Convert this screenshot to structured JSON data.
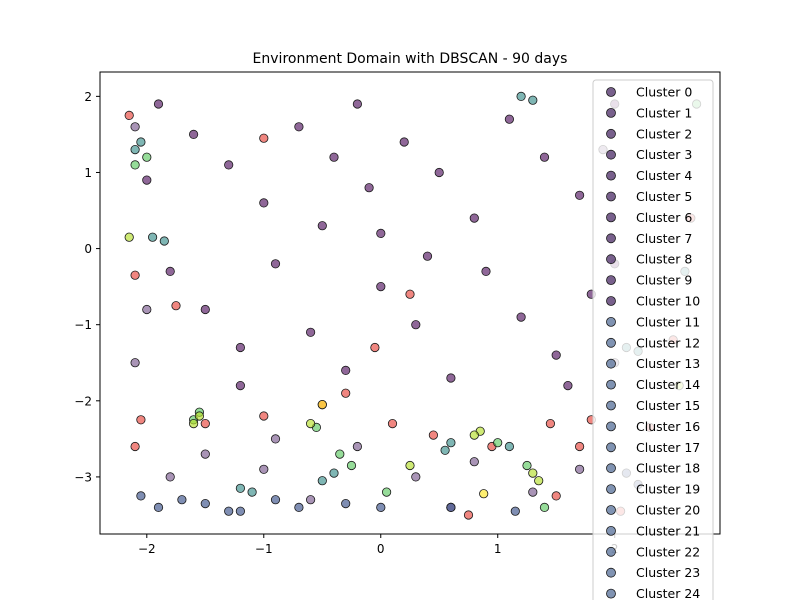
{
  "chart_data": {
    "type": "scatter",
    "title": "Environment Domain with DBSCAN - 90 days",
    "xlabel": "",
    "ylabel": "",
    "xlim": [
      -2.4,
      2.9
    ],
    "ylim": [
      -3.75,
      2.32
    ],
    "xticks": [
      -2,
      -1,
      0,
      1,
      2
    ],
    "yticks": [
      -3,
      -2,
      -1,
      0,
      1,
      2
    ],
    "grid": false,
    "legend_position": "top-right",
    "colors": {
      "dense": "#440154",
      "dense_light": "#7b5a8f",
      "noise": "#e8453c",
      "teal": "#3b8f8c",
      "green": "#5ec962",
      "lime": "#b5de2b",
      "navy": "#3b528b",
      "yellow": "#fde725",
      "legend_marker": "#4b2b66",
      "legend_marker_late": "#556f98"
    },
    "series": [
      {
        "name": "Cluster 0",
        "color_key": "dense",
        "points": [
          [
            -1.9,
            1.9
          ],
          [
            -1.6,
            1.5
          ],
          [
            -1.3,
            1.1
          ],
          [
            -1.0,
            0.6
          ],
          [
            -0.7,
            1.6
          ],
          [
            -0.4,
            1.2
          ],
          [
            -0.1,
            0.8
          ],
          [
            0.2,
            1.4
          ],
          [
            0.5,
            1.0
          ],
          [
            0.8,
            0.4
          ],
          [
            1.1,
            1.7
          ],
          [
            1.4,
            1.2
          ],
          [
            1.7,
            0.7
          ],
          [
            2.0,
            1.9
          ],
          [
            -1.8,
            -0.3
          ],
          [
            -1.5,
            -0.8
          ],
          [
            -1.2,
            -1.3
          ],
          [
            -0.9,
            -0.2
          ],
          [
            -0.6,
            -1.1
          ],
          [
            -0.3,
            -1.6
          ],
          [
            0.0,
            -0.5
          ],
          [
            0.3,
            -1.0
          ],
          [
            0.6,
            -1.7
          ],
          [
            0.9,
            -0.3
          ],
          [
            1.2,
            -0.9
          ],
          [
            1.5,
            -1.4
          ],
          [
            1.8,
            -0.6
          ],
          [
            -2.0,
            0.9
          ],
          [
            2.0,
            -0.2
          ],
          [
            0.0,
            0.2
          ],
          [
            0.4,
            -0.1
          ],
          [
            -0.5,
            0.3
          ],
          [
            -1.2,
            -1.8
          ],
          [
            1.6,
            -1.8
          ],
          [
            -0.2,
            1.9
          ]
        ]
      },
      {
        "name": "Cluster 1",
        "color_key": "dense_light",
        "points": [
          [
            -2.1,
            1.6
          ],
          [
            -2.0,
            -0.8
          ],
          [
            -2.1,
            -1.5
          ],
          [
            2.0,
            -1.5
          ],
          [
            1.9,
            1.3
          ],
          [
            -1.5,
            -2.7
          ],
          [
            -1.0,
            -2.9
          ],
          [
            -0.6,
            -3.3
          ],
          [
            -0.2,
            -2.6
          ],
          [
            0.3,
            -3.0
          ],
          [
            0.8,
            -2.8
          ],
          [
            1.3,
            -3.2
          ],
          [
            1.7,
            -2.9
          ],
          [
            -1.8,
            -3.0
          ],
          [
            0.6,
            -3.4
          ],
          [
            -0.9,
            -2.5
          ]
        ]
      },
      {
        "name": "Cluster 2",
        "color_key": "noise",
        "points": [
          [
            -2.15,
            1.75
          ],
          [
            -2.1,
            -0.35
          ],
          [
            -2.05,
            -2.25
          ],
          [
            -2.1,
            -2.6
          ],
          [
            -1.75,
            -0.75
          ],
          [
            -1.5,
            -2.3
          ],
          [
            -1.0,
            -2.2
          ],
          [
            -0.3,
            -1.9
          ],
          [
            -0.05,
            -1.3
          ],
          [
            0.45,
            -2.45
          ],
          [
            0.95,
            -2.6
          ],
          [
            1.5,
            -3.25
          ],
          [
            2.05,
            -3.45
          ],
          [
            1.7,
            -2.6
          ],
          [
            2.3,
            -2.35
          ],
          [
            1.45,
            -2.3
          ],
          [
            0.75,
            -3.5
          ],
          [
            0.1,
            -2.3
          ],
          [
            -0.5,
            -2.05
          ],
          [
            2.5,
            -1.2
          ],
          [
            2.65,
            0.4
          ],
          [
            1.8,
            -2.25
          ],
          [
            0.25,
            -0.6
          ],
          [
            -1.0,
            1.45
          ]
        ]
      },
      {
        "name": "Cluster 3",
        "color_key": "teal",
        "points": [
          [
            -2.05,
            1.4
          ],
          [
            -2.1,
            1.3
          ],
          [
            -1.95,
            0.15
          ],
          [
            -1.85,
            0.1
          ],
          [
            -1.2,
            -3.15
          ],
          [
            -1.1,
            -3.2
          ],
          [
            0.55,
            -2.65
          ],
          [
            0.6,
            -2.55
          ],
          [
            1.2,
            2.0
          ],
          [
            1.3,
            1.95
          ],
          [
            1.1,
            -2.6
          ],
          [
            2.1,
            -1.3
          ],
          [
            2.2,
            -1.35
          ],
          [
            2.6,
            -0.3
          ],
          [
            -0.5,
            -3.05
          ],
          [
            -0.4,
            -2.95
          ]
        ]
      },
      {
        "name": "Cluster 4",
        "color_key": "green",
        "points": [
          [
            -2.1,
            1.1
          ],
          [
            -2.0,
            1.2
          ],
          [
            -1.55,
            -2.15
          ],
          [
            -1.6,
            -2.25
          ],
          [
            -0.55,
            -2.35
          ],
          [
            -0.35,
            -2.7
          ],
          [
            -0.25,
            -2.85
          ],
          [
            0.05,
            -3.2
          ],
          [
            1.0,
            -2.55
          ],
          [
            1.25,
            -2.85
          ],
          [
            1.4,
            -3.4
          ],
          [
            2.7,
            1.9
          ]
        ]
      },
      {
        "name": "Cluster 5",
        "color_key": "lime",
        "points": [
          [
            -2.15,
            0.15
          ],
          [
            -1.55,
            -2.2
          ],
          [
            -1.6,
            -2.3
          ],
          [
            -0.6,
            -2.3
          ],
          [
            0.25,
            -2.85
          ],
          [
            0.85,
            -2.4
          ],
          [
            0.8,
            -2.45
          ],
          [
            1.3,
            -2.95
          ],
          [
            1.35,
            -3.05
          ],
          [
            2.55,
            -1.8
          ]
        ]
      },
      {
        "name": "Cluster 6",
        "color_key": "navy",
        "points": [
          [
            -2.05,
            -3.25
          ],
          [
            -1.9,
            -3.4
          ],
          [
            -1.7,
            -3.3
          ],
          [
            -1.5,
            -3.35
          ],
          [
            -1.3,
            -3.45
          ],
          [
            -1.2,
            -3.45
          ],
          [
            -0.9,
            -3.3
          ],
          [
            -0.7,
            -3.4
          ],
          [
            -0.3,
            -3.35
          ],
          [
            0.0,
            -3.4
          ],
          [
            0.6,
            -3.4
          ],
          [
            1.15,
            -3.45
          ],
          [
            2.1,
            -2.95
          ],
          [
            2.2,
            -3.1
          ]
        ]
      },
      {
        "name": "Cluster 7",
        "color_key": "yellow",
        "points": [
          [
            0.88,
            -3.22
          ],
          [
            -0.5,
            -2.05
          ]
        ]
      }
    ],
    "legend": [
      "Cluster 0",
      "Cluster 1",
      "Cluster 2",
      "Cluster 3",
      "Cluster 4",
      "Cluster 5",
      "Cluster 6",
      "Cluster 7",
      "Cluster 8",
      "Cluster 9",
      "Cluster 10",
      "Cluster 11",
      "Cluster 12",
      "Cluster 13",
      "Cluster 14",
      "Cluster 15",
      "Cluster 16",
      "Cluster 17",
      "Cluster 18",
      "Cluster 19",
      "Cluster 20",
      "Cluster 21",
      "Cluster 22",
      "Cluster 23",
      "Cluster 24"
    ]
  }
}
